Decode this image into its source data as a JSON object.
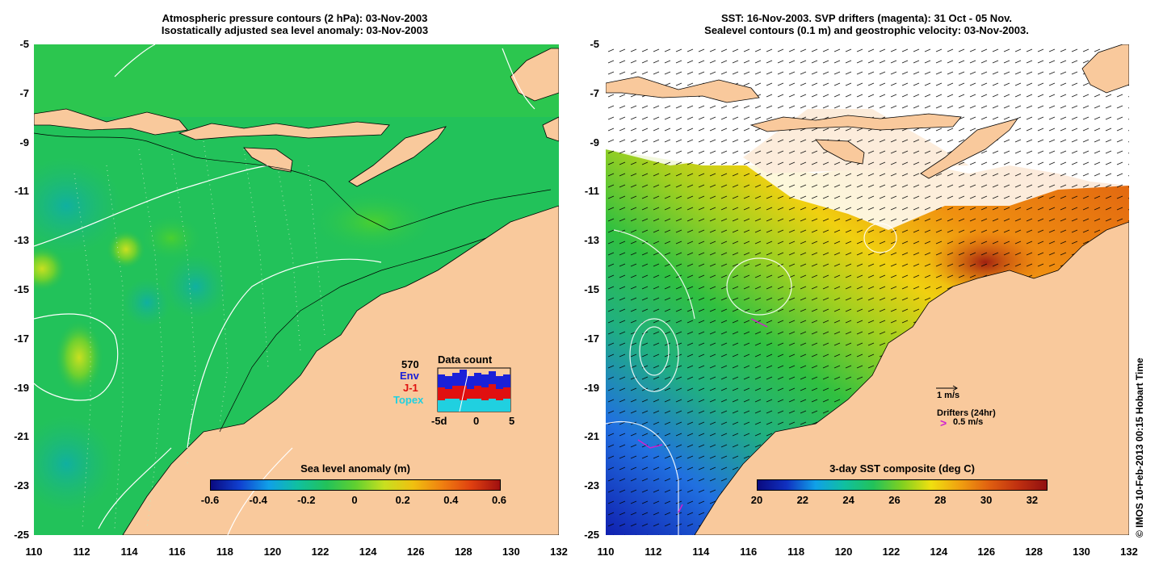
{
  "left_panel": {
    "title_line1": "Atmospheric pressure contours (2 hPa): 03-Nov-2003",
    "title_line2": "Isostatically adjusted sea level anomaly: 03-Nov-2003",
    "colorbar": {
      "title": "Sea level anomaly (m)",
      "ticks": [
        "-0.6",
        "-0.4",
        "-0.2",
        "0",
        "0.2",
        "0.4",
        "0.6"
      ],
      "range": [
        -0.6,
        0.6
      ]
    },
    "data_count": {
      "title": "Data count",
      "total": "570",
      "labels": [
        "Env",
        "J-1",
        "Topex"
      ],
      "label_colors": [
        "#1a20d8",
        "#e01010",
        "#20d0e0"
      ],
      "x_ticks": [
        "-5d",
        "0",
        "5"
      ]
    }
  },
  "right_panel": {
    "title_line1": "SST: 16-Nov-2003. SVP drifters (magenta): 31 Oct - 05 Nov.",
    "title_line2": "Sealevel contours (0.1 m) and geostrophic velocity: 03-Nov-2003.",
    "colorbar": {
      "title": "3-day SST composite (deg C)",
      "ticks": [
        "20",
        "22",
        "24",
        "26",
        "28",
        "30",
        "32"
      ],
      "range": [
        20,
        32.6
      ]
    },
    "velocity_legend": "1 m/s",
    "drifters_legend": "Drifters (24hr)",
    "drifters_speed": "0.5 m/s",
    "drifters_symbol": ">",
    "drifter_color": "#d020d0"
  },
  "axes": {
    "lat_ticks": [
      "-5",
      "-7",
      "-9",
      "-11",
      "-13",
      "-15",
      "-17",
      "-19",
      "-21",
      "-23",
      "-25"
    ],
    "lon_ticks": [
      "110",
      "112",
      "114",
      "116",
      "118",
      "120",
      "122",
      "124",
      "126",
      "128",
      "130",
      "132"
    ],
    "lat_range": [
      -25,
      -5
    ],
    "lon_range": [
      110,
      132
    ]
  },
  "credit": "© IMOS 10-Feb-2013 00:15 Hobart Time",
  "colors": {
    "land": "#f9c99c",
    "sea_green": "#22c25a",
    "contour": "#ffffff"
  }
}
